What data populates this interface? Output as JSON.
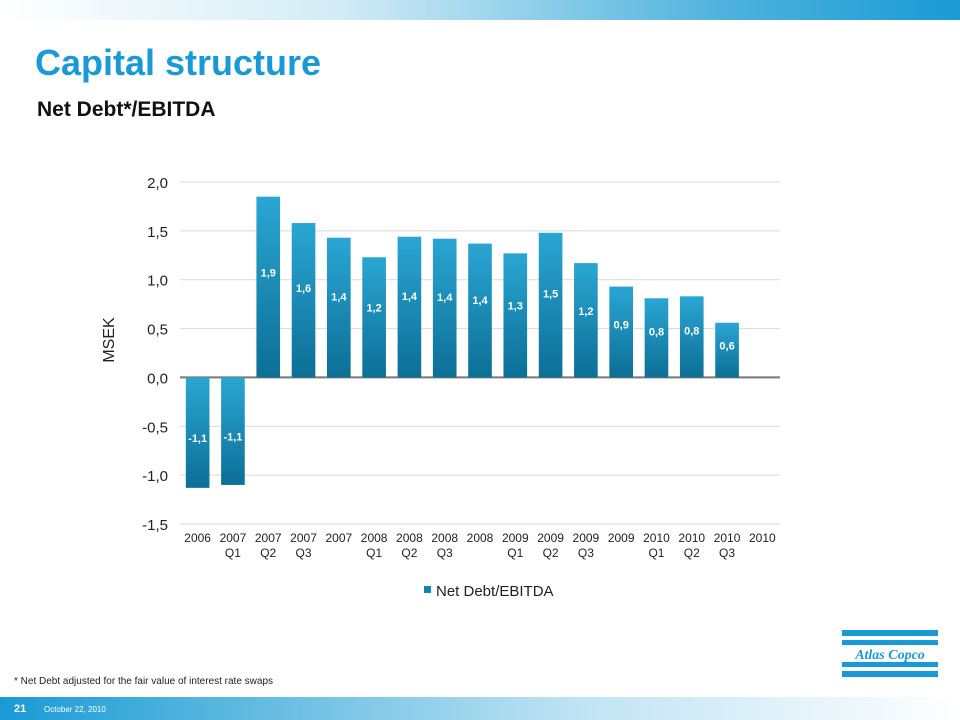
{
  "slide": {
    "title": "Capital structure",
    "subtitle": "Net Debt*/EBITDA",
    "footnote": "* Net Debt adjusted for the fair value of interest rate swaps",
    "page_number": "21",
    "date": "October 22, 2010",
    "logo_text": "AtlasCopco"
  },
  "colors": {
    "brand_blue": "#199ad6",
    "bar_top": "#2aa6d3",
    "bar_bottom": "#0c6f96"
  },
  "chart_data": {
    "type": "bar",
    "categories": [
      "2006",
      "2007 Q1",
      "2007 Q2",
      "2007 Q3",
      "2007",
      "2008 Q1",
      "2008 Q2",
      "2008 Q3",
      "2008",
      "2009 Q1",
      "2009 Q2",
      "2009 Q3",
      "2009",
      "2010 Q1",
      "2010 Q2",
      "2010 Q3",
      "2010"
    ],
    "category_lines": [
      [
        "2006"
      ],
      [
        "2007",
        "Q1"
      ],
      [
        "2007",
        "Q2"
      ],
      [
        "2007",
        "Q3"
      ],
      [
        "2007"
      ],
      [
        "2008",
        "Q1"
      ],
      [
        "2008",
        "Q2"
      ],
      [
        "2008",
        "Q3"
      ],
      [
        "2008"
      ],
      [
        "2009",
        "Q1"
      ],
      [
        "2009",
        "Q2"
      ],
      [
        "2009",
        "Q3"
      ],
      [
        "2009"
      ],
      [
        "2010",
        "Q1"
      ],
      [
        "2010",
        "Q2"
      ],
      [
        "2010",
        "Q3"
      ],
      [
        "2010"
      ]
    ],
    "series": [
      {
        "name": "Net Debt/EBITDA",
        "values": [
          -1.13,
          -1.1,
          1.85,
          1.58,
          1.43,
          1.23,
          1.44,
          1.42,
          1.37,
          1.27,
          1.48,
          1.17,
          0.93,
          0.81,
          0.83,
          0.56,
          null
        ],
        "labels": [
          "-1,1",
          "-1,1",
          "1,9",
          "1,6",
          "1,4",
          "1,2",
          "1,4",
          "1,4",
          "1,4",
          "1,3",
          "1,5",
          "1,2",
          "0,9",
          "0,8",
          "0,8",
          "0,6",
          ""
        ]
      }
    ],
    "ylabel": "MSEK",
    "xlabel": "",
    "ylim": [
      -1.5,
      2.0
    ],
    "yticks": [
      "2,0",
      "1,5",
      "1,0",
      "0,5",
      "0,0",
      "-0,5",
      "-1,0",
      "-1,5"
    ],
    "ytick_values": [
      2.0,
      1.5,
      1.0,
      0.5,
      0.0,
      -0.5,
      -1.0,
      -1.5
    ],
    "grid": true,
    "legend": "bottom-center"
  }
}
